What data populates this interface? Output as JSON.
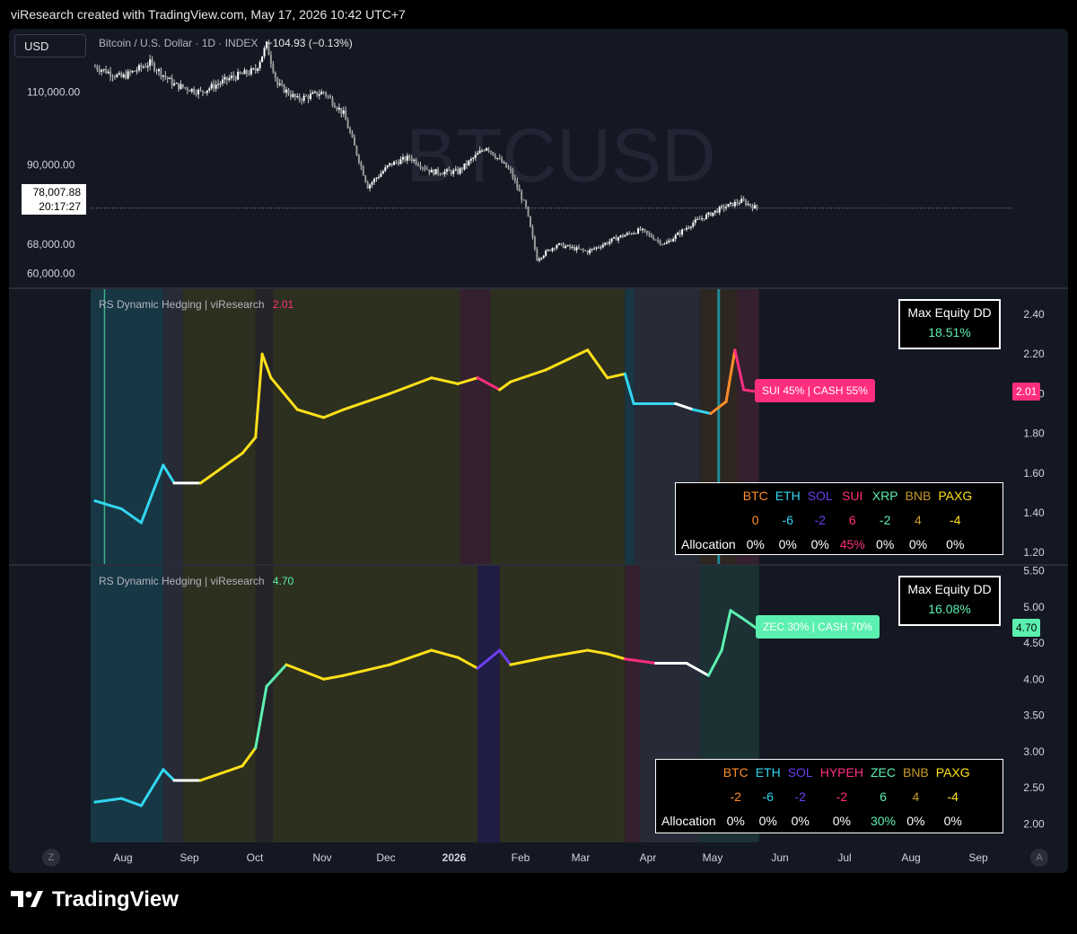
{
  "header": {
    "title": "viResearch created with TradingView.com, May 17, 2026 10:42 UTC+7"
  },
  "currency_button": "USD",
  "price_legend": {
    "symbol": "Bitcoin / U.S. Dollar · 1D · INDEX",
    "change": "−104.93 (−0.13%)"
  },
  "watermark": "BTCUSD",
  "last_price": {
    "value": "78,007.88",
    "countdown": "20:17:27"
  },
  "ind1": {
    "name": "RS Dynamic Hedging | viResearch",
    "value": "2.01",
    "max_dd_title": "Max Equity DD",
    "max_dd_value": "18.51%",
    "tag": "SUI 45% | CASH 55%",
    "axis_tag": "2.01",
    "table": {
      "assets": [
        "BTC",
        "ETH",
        "SOL",
        "SUI",
        "XRP",
        "BNB",
        "PAXG"
      ],
      "asset_colors": [
        "#ff8c2a",
        "#33d6f0",
        "#6b3df0",
        "#ff2e7e",
        "#5cf0b0",
        "#c89a2a",
        "#ffe01a"
      ],
      "scores": [
        "0",
        "-6",
        "-2",
        "6",
        "-2",
        "4",
        "-4"
      ],
      "allocation_label": "Allocation",
      "allocations": [
        "0%",
        "0%",
        "0%",
        "45%",
        "0%",
        "0%",
        "0%"
      ]
    }
  },
  "ind2": {
    "name": "RS Dynamic Hedging | viResearch",
    "value": "4.70",
    "max_dd_title": "Max Equity DD",
    "max_dd_value": "16.08%",
    "tag": "ZEC 30% | CASH 70%",
    "axis_tag": "4.70",
    "table": {
      "assets": [
        "BTC",
        "ETH",
        "SOL",
        "HYPEH",
        "ZEC",
        "BNB",
        "PAXG"
      ],
      "asset_colors": [
        "#ff8c2a",
        "#33d6f0",
        "#6b3df0",
        "#ff2e7e",
        "#5cf0b0",
        "#c89a2a",
        "#ffe01a"
      ],
      "scores": [
        "-2",
        "-6",
        "-2",
        "-2",
        "6",
        "4",
        "-4"
      ],
      "allocation_label": "Allocation",
      "allocations": [
        "0%",
        "0%",
        "0%",
        "0%",
        "30%",
        "0%",
        "0%"
      ]
    }
  },
  "footer": {
    "brand": "TradingView"
  },
  "buttons": {
    "left": "Z",
    "right": "A"
  },
  "colors": {
    "background": "#141823",
    "yellow": "#ffe01a",
    "cyan": "#33d6f0",
    "pink": "#ff2e7e",
    "orange": "#ff8c2a",
    "mint": "#5cf0b0",
    "white": "#ffffff"
  },
  "chart_data": [
    {
      "type": "candlestick",
      "title": "Bitcoin / U.S. Dollar · 1D · INDEX",
      "y_ticks": [
        "110,000.00",
        "90,000.00",
        "68,000.00",
        "60,000.00"
      ],
      "y_tick_values": [
        110000,
        90000,
        68000,
        60000
      ],
      "x_ticks": [
        "Aug",
        "Sep",
        "Oct",
        "Nov",
        "Dec",
        "2026",
        "Feb",
        "Mar",
        "Apr",
        "May",
        "Jun",
        "Jul",
        "Aug",
        "Sep"
      ],
      "series": [
        {
          "name": "BTCUSD close",
          "x": [
            "2025-07-20",
            "2025-08-01",
            "2025-08-14",
            "2025-08-25",
            "2025-09-06",
            "2025-09-20",
            "2025-10-01",
            "2025-10-06",
            "2025-10-11",
            "2025-10-20",
            "2025-11-01",
            "2025-11-10",
            "2025-11-21",
            "2025-12-01",
            "2025-12-10",
            "2025-12-20",
            "2026-01-01",
            "2026-01-14",
            "2026-01-25",
            "2026-02-01",
            "2026-02-06",
            "2026-02-15",
            "2026-03-01",
            "2026-03-15",
            "2026-03-25",
            "2026-04-05",
            "2026-04-18",
            "2026-05-01",
            "2026-05-10",
            "2026-05-17"
          ],
          "values": [
            117000,
            114000,
            118000,
            112000,
            110000,
            114000,
            116000,
            123000,
            112000,
            108000,
            110000,
            104000,
            84000,
            90000,
            92000,
            88000,
            88000,
            95000,
            88000,
            78000,
            64000,
            68000,
            66000,
            70000,
            72000,
            68000,
            74000,
            78000,
            80000,
            78008
          ]
        }
      ]
    },
    {
      "type": "line",
      "title": "RS Dynamic Hedging | viResearch",
      "y_ticks": [
        "2.40",
        "2.20",
        "2.00",
        "1.80",
        "1.60",
        "1.40",
        "1.20"
      ],
      "y_tick_values": [
        2.4,
        2.2,
        2.0,
        1.8,
        1.6,
        1.4,
        1.2
      ],
      "series": [
        {
          "name": "RS Dynamic Hedging | viResearch",
          "x": [
            "2025-07-20",
            "2025-08-01",
            "2025-08-10",
            "2025-08-20",
            "2025-08-25",
            "2025-09-06",
            "2025-09-25",
            "2025-10-01",
            "2025-10-04",
            "2025-10-08",
            "2025-10-20",
            "2025-11-01",
            "2025-11-10",
            "2025-12-01",
            "2025-12-20",
            "2026-01-01",
            "2026-01-10",
            "2026-01-20",
            "2026-01-25",
            "2026-02-10",
            "2026-03-01",
            "2026-03-10",
            "2026-03-18",
            "2026-03-22",
            "2026-04-10",
            "2026-04-18",
            "2026-04-26",
            "2026-05-03",
            "2026-05-07",
            "2026-05-11",
            "2026-05-17"
          ],
          "values": [
            1.46,
            1.42,
            1.35,
            1.64,
            1.55,
            1.55,
            1.7,
            1.78,
            2.2,
            2.08,
            1.92,
            1.88,
            1.92,
            2.0,
            2.08,
            2.05,
            2.08,
            2.02,
            2.06,
            2.12,
            2.22,
            2.08,
            2.1,
            1.95,
            1.95,
            1.92,
            1.9,
            1.96,
            2.22,
            2.02,
            2.01
          ]
        }
      ]
    },
    {
      "type": "line",
      "title": "RS Dynamic Hedging | viResearch",
      "y_ticks": [
        "5.50",
        "5.00",
        "4.50",
        "4.00",
        "3.50",
        "3.00",
        "2.50",
        "2.00"
      ],
      "y_tick_values": [
        5.5,
        5.0,
        4.5,
        4.0,
        3.5,
        3.0,
        2.5,
        2.0
      ],
      "series": [
        {
          "name": "RS Dynamic Hedging | viResearch",
          "x": [
            "2025-07-20",
            "2025-08-01",
            "2025-08-10",
            "2025-08-20",
            "2025-08-25",
            "2025-09-06",
            "2025-09-25",
            "2025-10-01",
            "2025-10-06",
            "2025-10-15",
            "2025-11-01",
            "2025-11-10",
            "2025-12-01",
            "2025-12-20",
            "2026-01-01",
            "2026-01-10",
            "2026-01-20",
            "2026-01-25",
            "2026-02-10",
            "2026-03-01",
            "2026-03-10",
            "2026-03-18",
            "2026-04-01",
            "2026-04-15",
            "2026-04-25",
            "2026-05-01",
            "2026-05-05",
            "2026-05-10",
            "2026-05-17"
          ],
          "values": [
            2.3,
            2.35,
            2.25,
            2.75,
            2.6,
            2.6,
            2.8,
            3.05,
            3.9,
            4.2,
            4.0,
            4.05,
            4.2,
            4.4,
            4.3,
            4.15,
            4.4,
            4.2,
            4.3,
            4.4,
            4.35,
            4.28,
            4.22,
            4.22,
            4.05,
            4.4,
            4.95,
            4.85,
            4.7
          ]
        }
      ]
    }
  ]
}
